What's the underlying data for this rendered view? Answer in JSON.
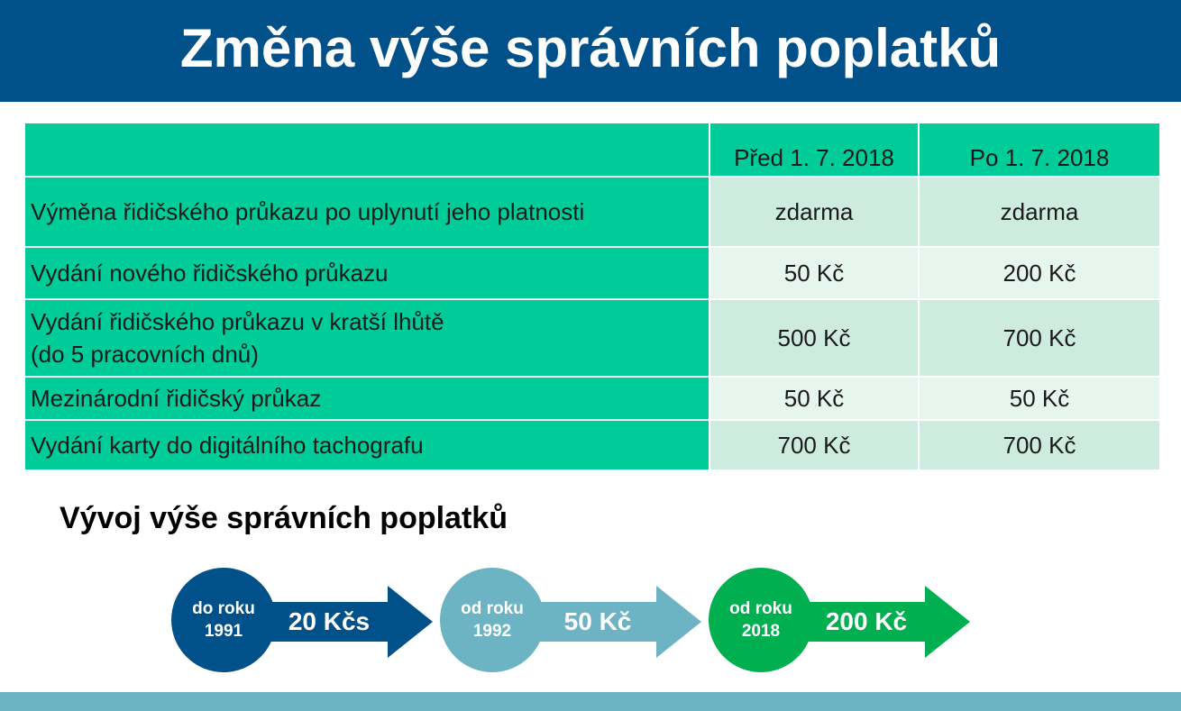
{
  "header": {
    "title": "Změna výše správních poplatků"
  },
  "fee_table": {
    "columns": [
      "",
      "Před 1. 7. 2018",
      "Po 1. 7. 2018"
    ],
    "rows": [
      {
        "label": "Výměna řidičského průkazu po uplynutí jeho platnosti",
        "label2": "",
        "before": "zdarma",
        "after": "zdarma"
      },
      {
        "label": "Vydání nového řidičského průkazu",
        "label2": "",
        "before": "50 Kč",
        "after": "200 Kč"
      },
      {
        "label": "Vydání řidičského průkazu v kratší lhůtě",
        "label2": "(do 5 pracovních dnů)",
        "before": "500 Kč",
        "after": "700 Kč"
      },
      {
        "label": "Mezinárodní řidičský průkaz",
        "label2": "",
        "before": "50 Kč",
        "after": "50 Kč"
      },
      {
        "label": "Vydání karty do digitálního tachografu",
        "label2": "",
        "before": "700 Kč",
        "after": "700 Kč"
      }
    ],
    "colors": {
      "label_bg": "#00cc99",
      "value_bg_dark": "#cdebdf",
      "value_bg_light": "#e7f5ef"
    }
  },
  "timeline": {
    "title": "Vývoj výše správních poplatků",
    "steps": [
      {
        "line1": "do roku",
        "line2": "1991",
        "value": "20 Kčs",
        "circle_color": "#005189",
        "arrow_color": "#005189"
      },
      {
        "line1": "od roku",
        "line2": "1992",
        "value": "50 Kč",
        "circle_color": "#6cb4c4",
        "arrow_color": "#6cb4c4"
      },
      {
        "line1": "od roku",
        "line2": "2018",
        "value": "200 Kč",
        "circle_color": "#00b050",
        "arrow_color": "#00b050"
      }
    ]
  },
  "colors": {
    "header_bg": "#005189",
    "footer_bar": "#6cb4c4"
  }
}
